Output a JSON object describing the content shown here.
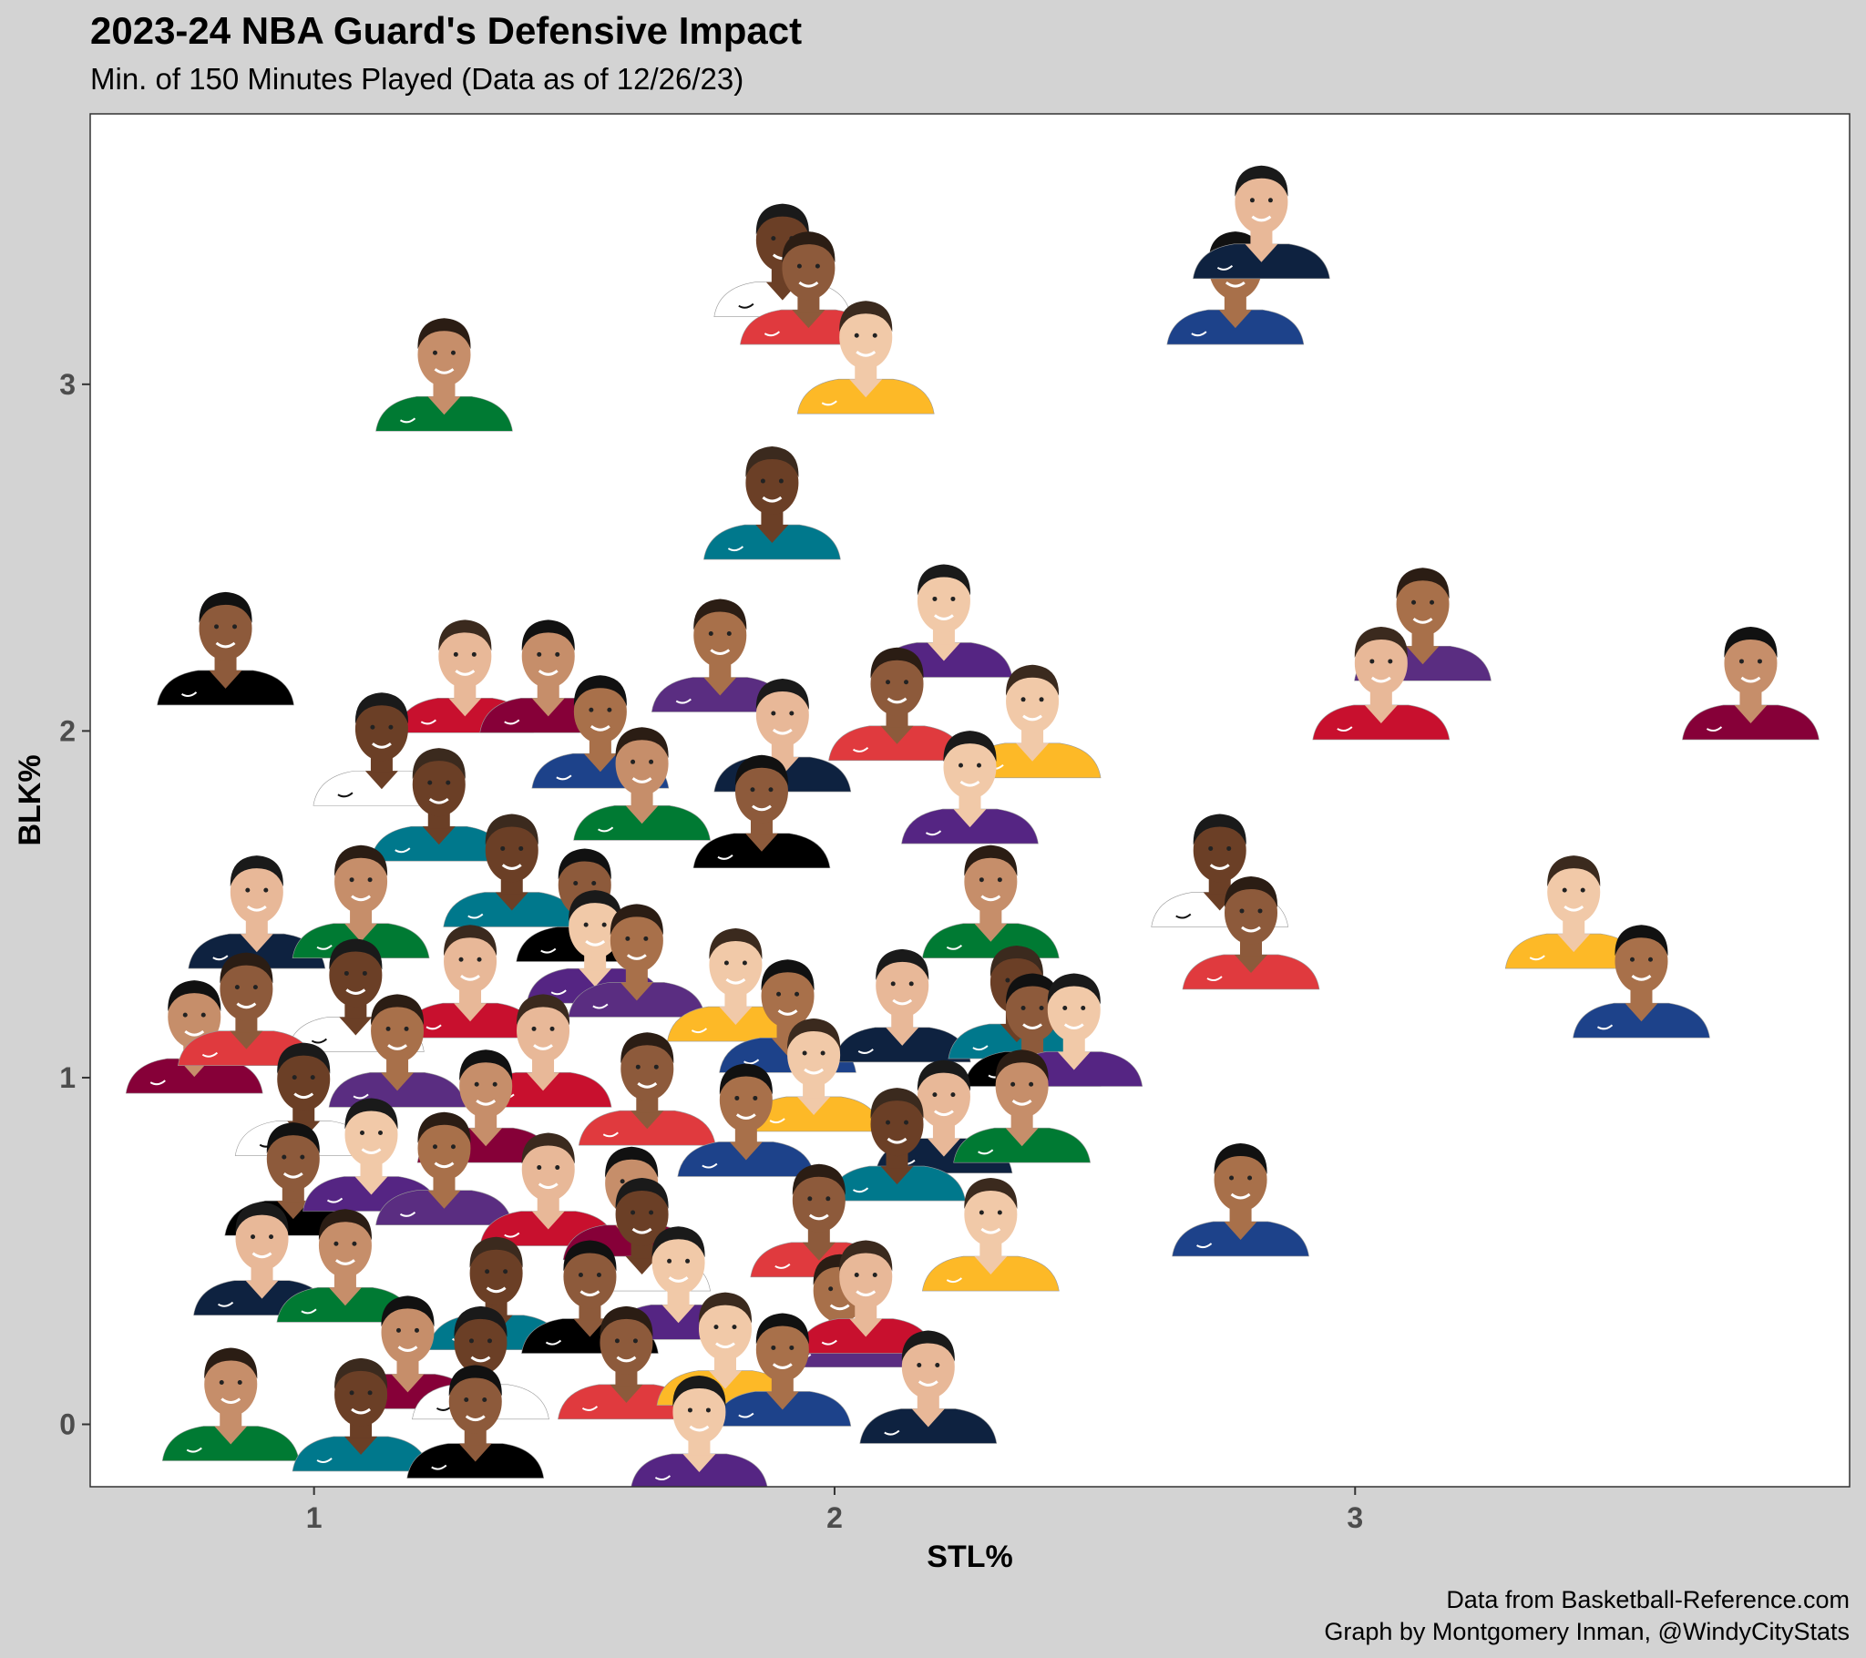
{
  "title": "2023-24 NBA Guard's Defensive Impact",
  "subtitle": "Min. of 150 Minutes Played (Data as of 12/26/23)",
  "caption": {
    "line1": "Data from Basketball-Reference.com",
    "line2": "Graph by Montgomery Inman, @WindyCityStats"
  },
  "colors": {
    "background": "#d3d3d3",
    "panel": "#ffffff",
    "skin_tones": [
      "#8d5a3b",
      "#6b3f26",
      "#c68e6a",
      "#e8b898",
      "#a8704a",
      "#f1c9a8"
    ],
    "jerseys": [
      "#1d428a",
      "#c8102e",
      "#007a33",
      "#ffffff",
      "#000000",
      "#fdb927",
      "#5a2d81",
      "#0e2240",
      "#860038",
      "#00788c",
      "#e03a3e",
      "#552583"
    ]
  },
  "chart_data": {
    "type": "scatter",
    "marker": "player headshot image",
    "xlabel": "STL%",
    "ylabel": "BLK%",
    "xlim": [
      0.57,
      3.95
    ],
    "ylim": [
      -0.18,
      3.78
    ],
    "xticks": [
      "1",
      "2",
      "3"
    ],
    "yticks": [
      "0",
      "1",
      "2",
      "3"
    ],
    "grid": false,
    "legend": "none",
    "points": [
      {
        "x": 1.9,
        "y": 3.3
      },
      {
        "x": 1.95,
        "y": 3.22
      },
      {
        "x": 2.06,
        "y": 3.02
      },
      {
        "x": 2.77,
        "y": 3.22
      },
      {
        "x": 2.82,
        "y": 3.41
      },
      {
        "x": 1.25,
        "y": 2.97
      },
      {
        "x": 1.88,
        "y": 2.6
      },
      {
        "x": 0.83,
        "y": 2.18
      },
      {
        "x": 2.21,
        "y": 2.26
      },
      {
        "x": 1.78,
        "y": 2.16
      },
      {
        "x": 1.29,
        "y": 2.1
      },
      {
        "x": 1.45,
        "y": 2.1
      },
      {
        "x": 1.13,
        "y": 1.89
      },
      {
        "x": 2.12,
        "y": 2.02
      },
      {
        "x": 2.38,
        "y": 1.97
      },
      {
        "x": 1.55,
        "y": 1.94
      },
      {
        "x": 1.9,
        "y": 1.93
      },
      {
        "x": 1.63,
        "y": 1.79
      },
      {
        "x": 1.24,
        "y": 1.73
      },
      {
        "x": 1.86,
        "y": 1.71
      },
      {
        "x": 2.26,
        "y": 1.78
      },
      {
        "x": 3.13,
        "y": 2.25
      },
      {
        "x": 3.05,
        "y": 2.08
      },
      {
        "x": 3.76,
        "y": 2.08
      },
      {
        "x": 2.74,
        "y": 1.54
      },
      {
        "x": 2.8,
        "y": 1.36
      },
      {
        "x": 3.42,
        "y": 1.42
      },
      {
        "x": 3.55,
        "y": 1.22
      },
      {
        "x": 0.89,
        "y": 1.42
      },
      {
        "x": 1.09,
        "y": 1.45
      },
      {
        "x": 1.38,
        "y": 1.54
      },
      {
        "x": 1.52,
        "y": 1.44
      },
      {
        "x": 1.54,
        "y": 1.32
      },
      {
        "x": 1.62,
        "y": 1.28
      },
      {
        "x": 1.3,
        "y": 1.22
      },
      {
        "x": 0.77,
        "y": 1.06
      },
      {
        "x": 1.08,
        "y": 1.18
      },
      {
        "x": 0.87,
        "y": 1.14
      },
      {
        "x": 1.81,
        "y": 1.21
      },
      {
        "x": 1.91,
        "y": 1.12
      },
      {
        "x": 2.13,
        "y": 1.15
      },
      {
        "x": 2.3,
        "y": 1.45
      },
      {
        "x": 2.35,
        "y": 1.16
      },
      {
        "x": 2.38,
        "y": 1.08
      },
      {
        "x": 2.46,
        "y": 1.08
      },
      {
        "x": 1.16,
        "y": 1.02
      },
      {
        "x": 1.44,
        "y": 1.02
      },
      {
        "x": 1.33,
        "y": 0.86
      },
      {
        "x": 0.98,
        "y": 0.88
      },
      {
        "x": 1.64,
        "y": 0.91
      },
      {
        "x": 1.96,
        "y": 0.95
      },
      {
        "x": 1.83,
        "y": 0.82
      },
      {
        "x": 2.21,
        "y": 0.83
      },
      {
        "x": 2.36,
        "y": 0.86
      },
      {
        "x": 2.12,
        "y": 0.75
      },
      {
        "x": 0.96,
        "y": 0.65
      },
      {
        "x": 1.11,
        "y": 0.72
      },
      {
        "x": 1.25,
        "y": 0.68
      },
      {
        "x": 1.45,
        "y": 0.62
      },
      {
        "x": 1.61,
        "y": 0.58
      },
      {
        "x": 1.63,
        "y": 0.49
      },
      {
        "x": 1.97,
        "y": 0.53
      },
      {
        "x": 2.3,
        "y": 0.49
      },
      {
        "x": 2.78,
        "y": 0.59
      },
      {
        "x": 0.9,
        "y": 0.42
      },
      {
        "x": 1.06,
        "y": 0.4
      },
      {
        "x": 1.35,
        "y": 0.32
      },
      {
        "x": 1.53,
        "y": 0.31
      },
      {
        "x": 1.7,
        "y": 0.35
      },
      {
        "x": 2.01,
        "y": 0.27
      },
      {
        "x": 2.06,
        "y": 0.31
      },
      {
        "x": 1.18,
        "y": 0.15
      },
      {
        "x": 1.32,
        "y": 0.12
      },
      {
        "x": 1.6,
        "y": 0.12
      },
      {
        "x": 1.79,
        "y": 0.16
      },
      {
        "x": 1.9,
        "y": 0.1
      },
      {
        "x": 2.18,
        "y": 0.05
      },
      {
        "x": 0.84,
        "y": 0.0
      },
      {
        "x": 1.09,
        "y": -0.03
      },
      {
        "x": 1.31,
        "y": -0.05
      },
      {
        "x": 1.74,
        "y": -0.08
      }
    ]
  }
}
